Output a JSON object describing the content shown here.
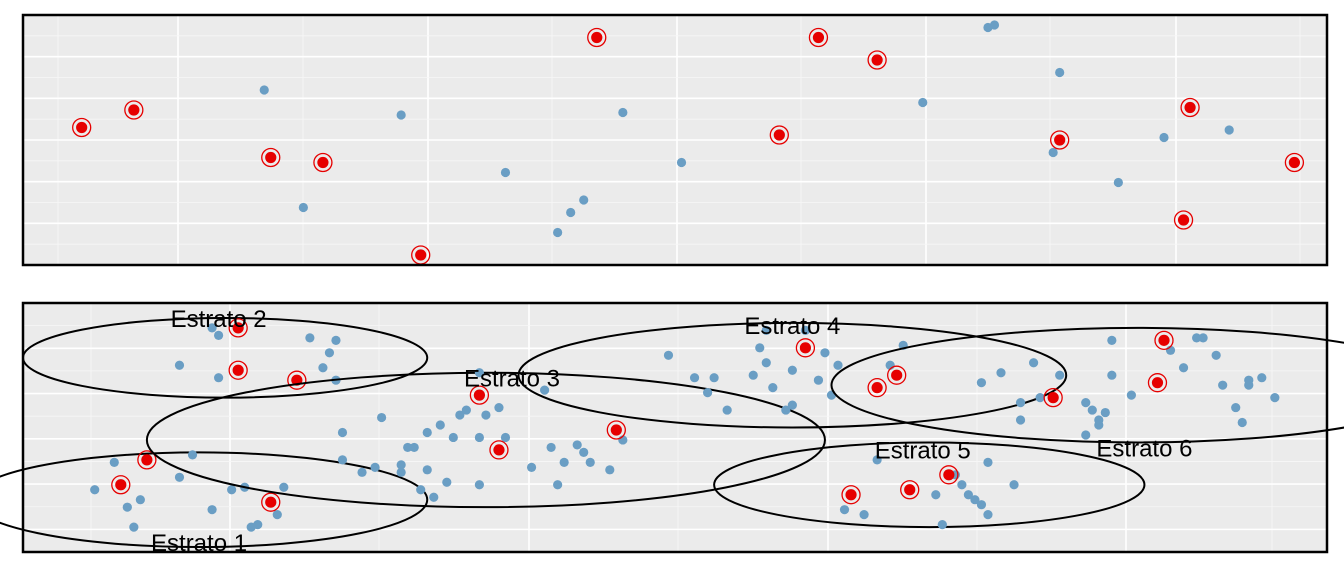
{
  "chart_data": [
    {
      "type": "scatter",
      "panel": "top",
      "grid": true,
      "xlim": [
        0,
        100
      ],
      "ylim": [
        0,
        100
      ],
      "points": [
        {
          "x": 18.5,
          "y": 70
        },
        {
          "x": 21.5,
          "y": 23
        },
        {
          "x": 29,
          "y": 60
        },
        {
          "x": 37,
          "y": 37
        },
        {
          "x": 41,
          "y": 13
        },
        {
          "x": 42,
          "y": 21
        },
        {
          "x": 43,
          "y": 26
        },
        {
          "x": 46,
          "y": 61
        },
        {
          "x": 50.5,
          "y": 41
        },
        {
          "x": 69,
          "y": 65
        },
        {
          "x": 74,
          "y": 95
        },
        {
          "x": 74.5,
          "y": 96
        },
        {
          "x": 79.5,
          "y": 77
        },
        {
          "x": 79,
          "y": 45
        },
        {
          "x": 84,
          "y": 33
        },
        {
          "x": 87.5,
          "y": 51
        },
        {
          "x": 92.5,
          "y": 54
        }
      ],
      "sample": [
        {
          "x": 4.5,
          "y": 55
        },
        {
          "x": 8.5,
          "y": 62
        },
        {
          "x": 19,
          "y": 43
        },
        {
          "x": 23,
          "y": 41
        },
        {
          "x": 30.5,
          "y": 4
        },
        {
          "x": 44,
          "y": 91
        },
        {
          "x": 58,
          "y": 52
        },
        {
          "x": 61,
          "y": 91
        },
        {
          "x": 65.5,
          "y": 82
        },
        {
          "x": 79.5,
          "y": 50
        },
        {
          "x": 89,
          "y": 18
        },
        {
          "x": 89.5,
          "y": 63
        },
        {
          "x": 97.5,
          "y": 41
        }
      ]
    },
    {
      "type": "scatter",
      "panel": "bottom",
      "grid": true,
      "xlim": [
        0,
        100
      ],
      "ylim": [
        0,
        100
      ],
      "strata": [
        {
          "label": "Estrato 1",
          "ellipse": {
            "cx": 13.5,
            "cy": 21,
            "rx": 17.5,
            "ry": 19
          },
          "label_pos": {
            "x": 13.5,
            "y": 3
          },
          "points": [
            {
              "x": 5.5,
              "y": 25
            },
            {
              "x": 7,
              "y": 36
            },
            {
              "x": 8,
              "y": 18
            },
            {
              "x": 8.5,
              "y": 10
            },
            {
              "x": 9,
              "y": 21
            },
            {
              "x": 12,
              "y": 30
            },
            {
              "x": 13,
              "y": 39
            },
            {
              "x": 14.5,
              "y": 17
            },
            {
              "x": 16,
              "y": 25
            },
            {
              "x": 17,
              "y": 26
            },
            {
              "x": 17.5,
              "y": 10
            },
            {
              "x": 18,
              "y": 11
            },
            {
              "x": 19.5,
              "y": 15
            },
            {
              "x": 20,
              "y": 26
            }
          ],
          "sample": [
            {
              "x": 7.5,
              "y": 27
            },
            {
              "x": 9.5,
              "y": 37
            },
            {
              "x": 19,
              "y": 20
            }
          ]
        },
        {
          "label": "Estrato 2",
          "ellipse": {
            "cx": 15.5,
            "cy": 78,
            "rx": 15.5,
            "ry": 16
          },
          "label_pos": {
            "x": 15,
            "y": 93
          },
          "points": [
            {
              "x": 12,
              "y": 75
            },
            {
              "x": 14.5,
              "y": 90
            },
            {
              "x": 15,
              "y": 87
            },
            {
              "x": 15,
              "y": 70
            },
            {
              "x": 22,
              "y": 86
            },
            {
              "x": 23,
              "y": 74
            },
            {
              "x": 23.5,
              "y": 80
            },
            {
              "x": 24,
              "y": 85
            },
            {
              "x": 24,
              "y": 69
            }
          ],
          "sample": [
            {
              "x": 16.5,
              "y": 90
            },
            {
              "x": 16.5,
              "y": 73
            },
            {
              "x": 21,
              "y": 69
            }
          ]
        },
        {
          "label": "Estrato 3",
          "ellipse": {
            "cx": 35.5,
            "cy": 45,
            "rx": 26,
            "ry": 27
          },
          "label_pos": {
            "x": 37.5,
            "y": 69
          },
          "points": [
            {
              "x": 24.5,
              "y": 48
            },
            {
              "x": 24.5,
              "y": 37
            },
            {
              "x": 26,
              "y": 32
            },
            {
              "x": 27,
              "y": 34
            },
            {
              "x": 27.5,
              "y": 54
            },
            {
              "x": 29,
              "y": 32
            },
            {
              "x": 29,
              "y": 35
            },
            {
              "x": 29.5,
              "y": 42
            },
            {
              "x": 30,
              "y": 42
            },
            {
              "x": 30.5,
              "y": 25
            },
            {
              "x": 31,
              "y": 48
            },
            {
              "x": 31,
              "y": 33
            },
            {
              "x": 31.5,
              "y": 22
            },
            {
              "x": 32,
              "y": 51
            },
            {
              "x": 32.5,
              "y": 28
            },
            {
              "x": 33,
              "y": 46
            },
            {
              "x": 33.5,
              "y": 55
            },
            {
              "x": 34,
              "y": 57
            },
            {
              "x": 35,
              "y": 46
            },
            {
              "x": 35,
              "y": 27
            },
            {
              "x": 35,
              "y": 72
            },
            {
              "x": 35.5,
              "y": 55
            },
            {
              "x": 36.5,
              "y": 58
            },
            {
              "x": 37,
              "y": 46
            },
            {
              "x": 39,
              "y": 34
            },
            {
              "x": 40,
              "y": 65
            },
            {
              "x": 40.5,
              "y": 42
            },
            {
              "x": 41,
              "y": 27
            },
            {
              "x": 41.5,
              "y": 36
            },
            {
              "x": 42.5,
              "y": 43
            },
            {
              "x": 43,
              "y": 40
            },
            {
              "x": 43.5,
              "y": 36
            },
            {
              "x": 45,
              "y": 33
            },
            {
              "x": 46,
              "y": 45
            }
          ],
          "sample": [
            {
              "x": 35,
              "y": 63
            },
            {
              "x": 36.5,
              "y": 41
            },
            {
              "x": 45.5,
              "y": 49
            }
          ]
        },
        {
          "label": "Estrato 4",
          "ellipse": {
            "cx": 59,
            "cy": 71,
            "rx": 21,
            "ry": 21
          },
          "label_pos": {
            "x": 59,
            "y": 90
          },
          "points": [
            {
              "x": 49.5,
              "y": 79
            },
            {
              "x": 51.5,
              "y": 70
            },
            {
              "x": 52.5,
              "y": 64
            },
            {
              "x": 53,
              "y": 70
            },
            {
              "x": 54,
              "y": 57
            },
            {
              "x": 56,
              "y": 71
            },
            {
              "x": 56.5,
              "y": 82
            },
            {
              "x": 57,
              "y": 89
            },
            {
              "x": 57,
              "y": 76
            },
            {
              "x": 57.5,
              "y": 66
            },
            {
              "x": 58.5,
              "y": 57
            },
            {
              "x": 59,
              "y": 73
            },
            {
              "x": 59,
              "y": 59
            },
            {
              "x": 60,
              "y": 89
            },
            {
              "x": 61,
              "y": 69
            },
            {
              "x": 61.5,
              "y": 80
            },
            {
              "x": 62,
              "y": 63
            },
            {
              "x": 62.5,
              "y": 75
            },
            {
              "x": 66.5,
              "y": 75
            },
            {
              "x": 67.5,
              "y": 83
            }
          ],
          "sample": [
            {
              "x": 60,
              "y": 82
            },
            {
              "x": 65.5,
              "y": 66
            },
            {
              "x": 67,
              "y": 71
            }
          ]
        },
        {
          "label": "Estrato 5",
          "ellipse": {
            "cx": 69.5,
            "cy": 27,
            "rx": 16.5,
            "ry": 17
          },
          "label_pos": {
            "x": 69,
            "y": 40
          },
          "points": [
            {
              "x": 63,
              "y": 17
            },
            {
              "x": 64.5,
              "y": 15
            },
            {
              "x": 65.5,
              "y": 37
            },
            {
              "x": 70,
              "y": 23
            },
            {
              "x": 70.5,
              "y": 11
            },
            {
              "x": 71.5,
              "y": 31
            },
            {
              "x": 72,
              "y": 27
            },
            {
              "x": 72.5,
              "y": 23
            },
            {
              "x": 73,
              "y": 21
            },
            {
              "x": 73.5,
              "y": 19
            },
            {
              "x": 74,
              "y": 36
            },
            {
              "x": 74,
              "y": 15
            },
            {
              "x": 76,
              "y": 27
            }
          ],
          "sample": [
            {
              "x": 63.5,
              "y": 23
            },
            {
              "x": 68,
              "y": 25
            },
            {
              "x": 71,
              "y": 31
            }
          ]
        },
        {
          "label": "Estrato 6",
          "ellipse": {
            "cx": 85.5,
            "cy": 67,
            "rx": 23.5,
            "ry": 23
          },
          "label_pos": {
            "x": 86,
            "y": 41
          },
          "points": [
            {
              "x": 73.5,
              "y": 68
            },
            {
              "x": 75,
              "y": 72
            },
            {
              "x": 76.5,
              "y": 60
            },
            {
              "x": 76.5,
              "y": 53
            },
            {
              "x": 77.5,
              "y": 76
            },
            {
              "x": 78,
              "y": 62
            },
            {
              "x": 79.5,
              "y": 71
            },
            {
              "x": 81.5,
              "y": 60
            },
            {
              "x": 81.5,
              "y": 47
            },
            {
              "x": 82,
              "y": 57
            },
            {
              "x": 82.5,
              "y": 51
            },
            {
              "x": 82.5,
              "y": 53
            },
            {
              "x": 83,
              "y": 56
            },
            {
              "x": 83.5,
              "y": 71
            },
            {
              "x": 83.5,
              "y": 85
            },
            {
              "x": 85,
              "y": 63
            },
            {
              "x": 88,
              "y": 81
            },
            {
              "x": 89,
              "y": 74
            },
            {
              "x": 90,
              "y": 86
            },
            {
              "x": 90.5,
              "y": 86
            },
            {
              "x": 91.5,
              "y": 79
            },
            {
              "x": 92,
              "y": 67
            },
            {
              "x": 93,
              "y": 58
            },
            {
              "x": 93.5,
              "y": 52
            },
            {
              "x": 94,
              "y": 69
            },
            {
              "x": 94,
              "y": 67
            },
            {
              "x": 95,
              "y": 70
            },
            {
              "x": 96,
              "y": 62
            }
          ],
          "sample": [
            {
              "x": 79,
              "y": 62
            },
            {
              "x": 87,
              "y": 68
            },
            {
              "x": 87.5,
              "y": 85
            }
          ]
        }
      ]
    }
  ]
}
